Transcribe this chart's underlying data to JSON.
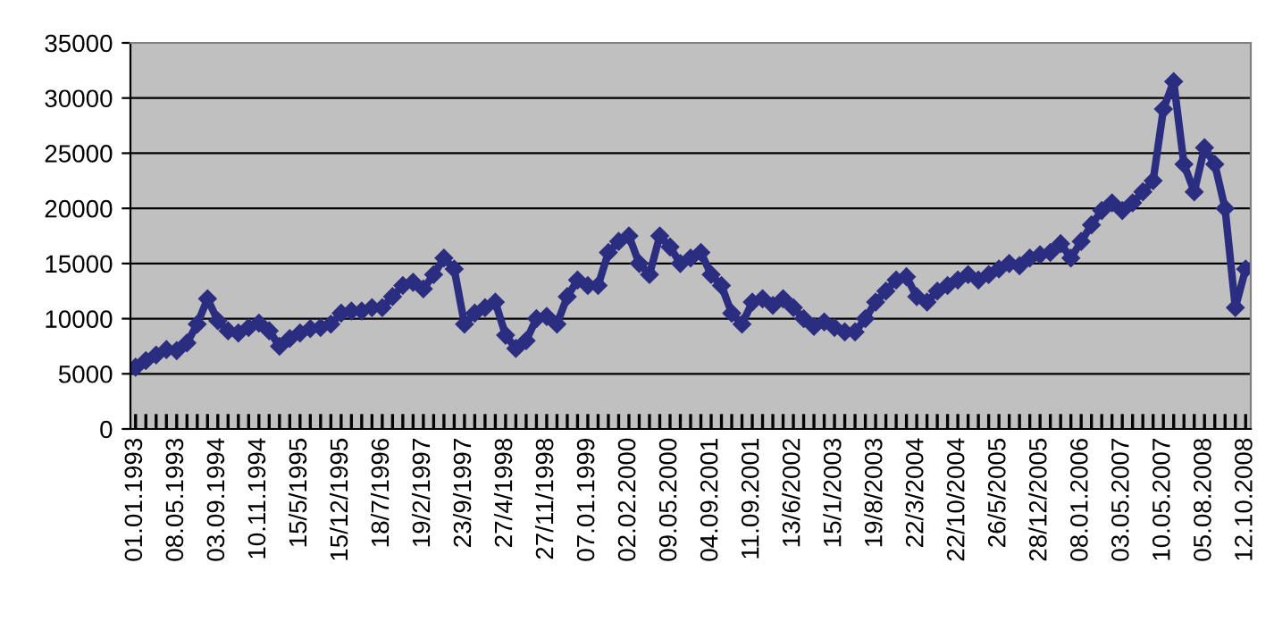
{
  "chart_data": {
    "type": "line",
    "categories": [
      "01.01.1993",
      null,
      null,
      null,
      "08.05.1993",
      null,
      null,
      null,
      "03.09.1994",
      null,
      null,
      null,
      "10.11.1994",
      null,
      null,
      null,
      "15/5/1995",
      null,
      null,
      null,
      "15/12/1995",
      null,
      null,
      null,
      "18/7/1996",
      null,
      null,
      null,
      "19/2/1997",
      null,
      null,
      null,
      "23/9/1997",
      null,
      null,
      null,
      "27/4/1998",
      null,
      null,
      null,
      "27/11/1998",
      null,
      null,
      null,
      "07.01.1999",
      null,
      null,
      null,
      "02.02.2000",
      null,
      null,
      null,
      "09.05.2000",
      null,
      null,
      null,
      "04.09.2001",
      null,
      null,
      null,
      "11.09.2001",
      null,
      null,
      null,
      "13/6/2002",
      null,
      null,
      null,
      "15/1/2003",
      null,
      null,
      null,
      "19/8/2003",
      null,
      null,
      null,
      "22/3/2004",
      null,
      null,
      null,
      "22/10/2004",
      null,
      null,
      null,
      "26/5/2005",
      null,
      null,
      null,
      "28/12/2005",
      null,
      null,
      null,
      "08.01.2006",
      null,
      null,
      null,
      "03.05.2007",
      null,
      null,
      null,
      "10.05.2007",
      null,
      null,
      null,
      "05.08.2008",
      null,
      null,
      null,
      "12.10.2008"
    ],
    "series": [
      {
        "color": "#2b2d80",
        "values": [
          5600,
          6200,
          6700,
          7200,
          7100,
          7800,
          9500,
          11800,
          9800,
          8900,
          8700,
          9200,
          9600,
          8900,
          7500,
          8200,
          8700,
          9100,
          9200,
          9500,
          10500,
          10700,
          10700,
          11000,
          11000,
          12000,
          13000,
          13300,
          12700,
          14000,
          15500,
          14500,
          9500,
          10500,
          11000,
          11500,
          8500,
          7300,
          8000,
          10000,
          10200,
          9500,
          12000,
          13500,
          13000,
          13000,
          16000,
          17000,
          17500,
          15000,
          14000,
          17500,
          16500,
          15000,
          15500,
          16000,
          14000,
          13000,
          10500,
          9500,
          11500,
          11800,
          11200,
          11800,
          11000,
          10000,
          9300,
          9700,
          9200,
          8800,
          8800,
          10000,
          11500,
          12500,
          13500,
          13800,
          12000,
          11500,
          12500,
          13000,
          13500,
          14000,
          13500,
          14000,
          14500,
          15000,
          14800,
          15500,
          15800,
          16000,
          16800,
          15500,
          17000,
          18500,
          19800,
          20500,
          19800,
          20500,
          21500,
          22500,
          29000,
          31500,
          24000,
          21500,
          25500,
          24000,
          20000,
          11000,
          14500
        ]
      }
    ],
    "ylim": [
      0,
      35000
    ],
    "yticks": [
      0,
      5000,
      10000,
      15000,
      20000,
      25000,
      30000,
      35000
    ],
    "grid": "y",
    "marker": "diamond",
    "line_style": "solid"
  }
}
